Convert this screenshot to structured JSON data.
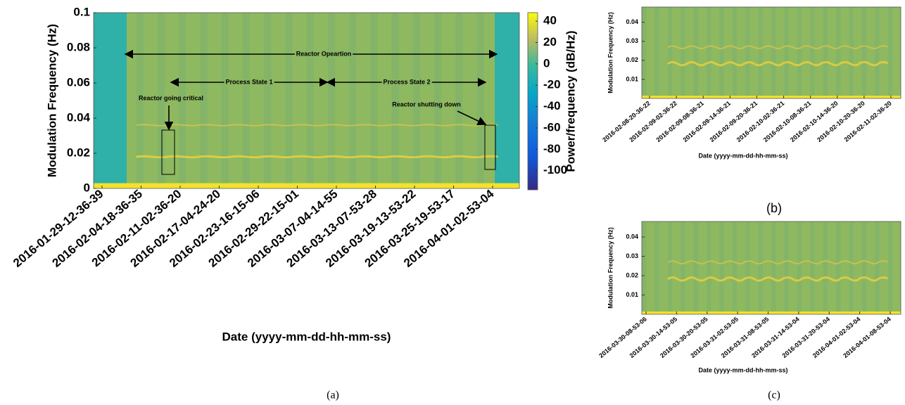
{
  "chart_data": [
    {
      "type": "spectrogram",
      "caption": "(a)",
      "ylabel": "Modulation Frequency (Hz)",
      "xlabel": "Date (yyyy-mm-dd-hh-mm-ss)",
      "categories": [
        "2016-01-29-12-36-39",
        "2016-02-04-18-36-35",
        "2016-02-11-02-36-20",
        "2016-02-17-04-24-20",
        "2016-02-23-16-15-06",
        "2016-02-29-22-15-01",
        "2016-03-07-04-14-55",
        "2016-03-13-07-53-28",
        "2016-03-19-13-53-22",
        "2016-03-25-19-53-17",
        "2016-04-01-02-53-04"
      ],
      "ylim": [
        0,
        0.1
      ],
      "yticks": [
        0,
        0.02,
        0.04,
        0.06,
        0.08,
        0.1
      ],
      "colorbar": {
        "label": "Power/frequency (dB/Hz)",
        "lim": [
          -118,
          48
        ],
        "ticks": [
          -100,
          -80,
          -60,
          -40,
          -20,
          0,
          20,
          40
        ]
      },
      "annotations": [
        "Reactor Opeartion",
        "Process State 1",
        "Process State 2",
        "Reactor going critical",
        "Reactor shutting down"
      ]
    },
    {
      "type": "spectrogram",
      "caption": "(b)",
      "ylabel": "Modulation Frequency (Hz)",
      "xlabel": "Date (yyyy-mm-dd-hh-mm-ss)",
      "categories": [
        "2016-02-08-20-36-22",
        "2016-02-09-02-36-22",
        "2016-02-09-08-36-21",
        "2016-02-09-14-36-21",
        "2016-02-09-20-36-21",
        "2016-02-10-02-36-21",
        "2016-02-10-08-36-21",
        "2016-02-10-14-36-20",
        "2016-02-10-20-36-20",
        "2016-02-11-02-36-20"
      ],
      "ylim": [
        0,
        0.048
      ],
      "yticks": [
        0.01,
        0.02,
        0.03,
        0.04
      ]
    },
    {
      "type": "spectrogram",
      "caption": "(c)",
      "ylabel": "Modulation Frequency (Hz)",
      "xlabel": "Date (yyyy-mm-dd-hh-mm-ss)",
      "categories": [
        "2016-03-30-08-53-06",
        "2016-03-30-14-53-05",
        "2016-03-30-20-53-05",
        "2016-03-31-02-53-05",
        "2016-03-31-08-53-05",
        "2016-03-31-14-53-04",
        "2016-03-31-20-53-04",
        "2016-04-01-02-53-04",
        "2016-04-01-08-53-04"
      ],
      "ylim": [
        0,
        0.048
      ],
      "yticks": [
        0.01,
        0.02,
        0.03,
        0.04
      ]
    }
  ]
}
